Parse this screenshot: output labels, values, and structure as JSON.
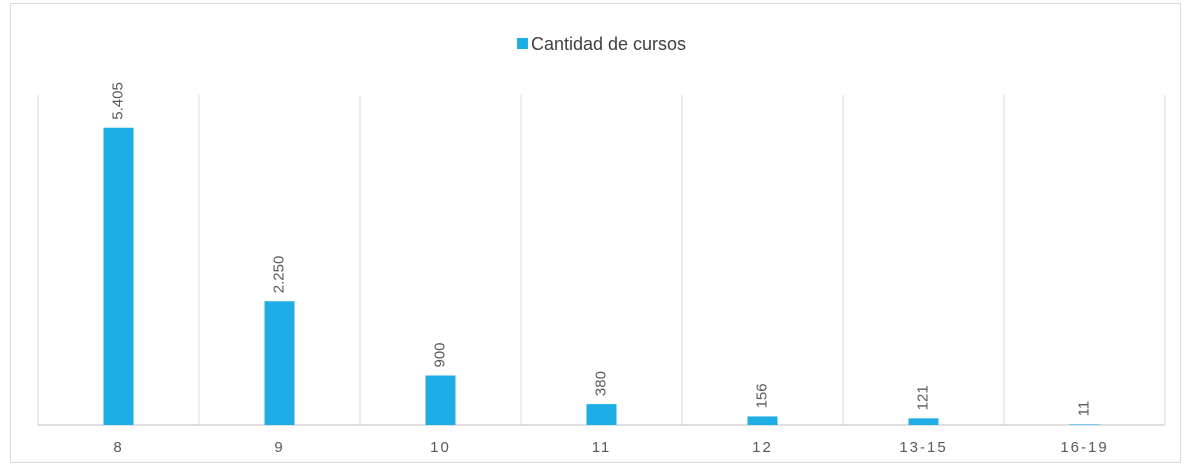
{
  "chart_data": {
    "type": "bar",
    "categories": [
      "8",
      "9",
      "10",
      "11",
      "12",
      "13-15",
      "16-19"
    ],
    "series": [
      {
        "name": "Cantidad de cursos",
        "color": "#1eade5",
        "values": [
          5405,
          2250,
          900,
          380,
          156,
          121,
          11
        ],
        "value_labels": [
          "5.405",
          "2.250",
          "900",
          "380",
          "156",
          "121",
          "11"
        ]
      }
    ],
    "ylim": [
      0,
      6000
    ]
  }
}
